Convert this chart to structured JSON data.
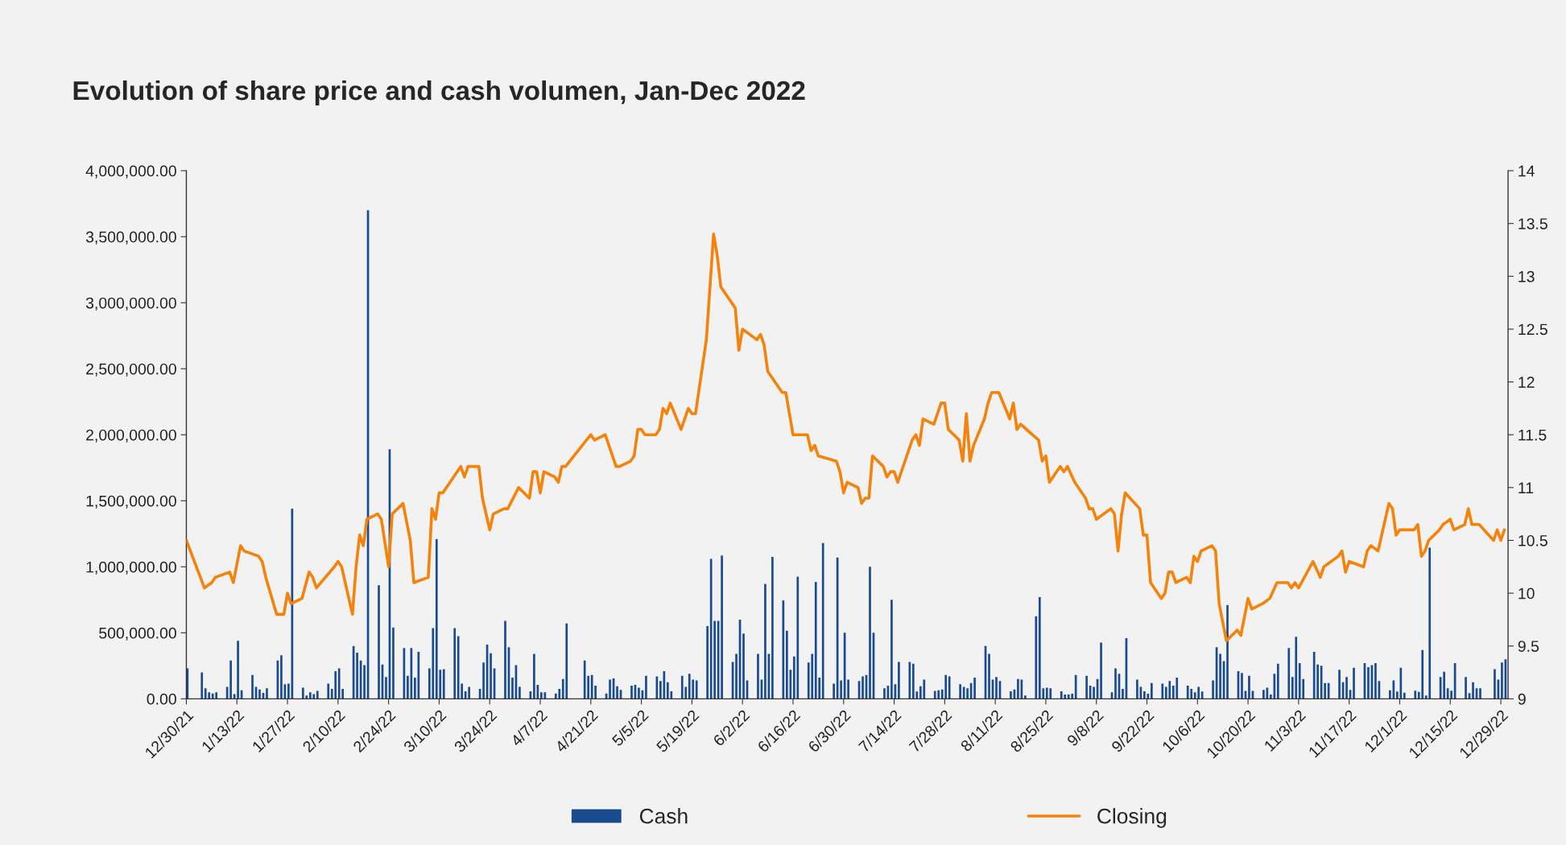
{
  "chart_data": {
    "type": "bar",
    "title": "Evolution of share price and cash volumen, Jan-Dec 2022",
    "legend": "bottom",
    "xlim": [
      "2021-12-30",
      "2022-12-31"
    ],
    "xticks": [
      {
        "value": "2021-12-30",
        "label": "12/30/21"
      },
      {
        "value": "2022-01-13",
        "label": "1/13/22"
      },
      {
        "value": "2022-01-27",
        "label": "1/27/22"
      },
      {
        "value": "2022-02-10",
        "label": "2/10/22"
      },
      {
        "value": "2022-02-24",
        "label": "2/24/22"
      },
      {
        "value": "2022-03-10",
        "label": "3/10/22"
      },
      {
        "value": "2022-03-24",
        "label": "3/24/22"
      },
      {
        "value": "2022-04-07",
        "label": "4/7/22"
      },
      {
        "value": "2022-04-21",
        "label": "4/21/22"
      },
      {
        "value": "2022-05-05",
        "label": "5/5/22"
      },
      {
        "value": "2022-05-19",
        "label": "5/19/22"
      },
      {
        "value": "2022-06-02",
        "label": "6/2/22"
      },
      {
        "value": "2022-06-16",
        "label": "6/16/22"
      },
      {
        "value": "2022-06-30",
        "label": "6/30/22"
      },
      {
        "value": "2022-07-14",
        "label": "7/14/22"
      },
      {
        "value": "2022-07-28",
        "label": "7/28/22"
      },
      {
        "value": "2022-08-11",
        "label": "8/11/22"
      },
      {
        "value": "2022-08-25",
        "label": "8/25/22"
      },
      {
        "value": "2022-09-08",
        "label": "9/8/22"
      },
      {
        "value": "2022-09-22",
        "label": "9/22/22"
      },
      {
        "value": "2022-10-06",
        "label": "10/6/22"
      },
      {
        "value": "2022-10-20",
        "label": "10/20/22"
      },
      {
        "value": "2022-11-03",
        "label": "11/3/22"
      },
      {
        "value": "2022-11-17",
        "label": "11/17/22"
      },
      {
        "value": "2022-12-01",
        "label": "12/1/22"
      },
      {
        "value": "2022-12-15",
        "label": "12/15/22"
      },
      {
        "value": "2022-12-29",
        "label": "12/29/22"
      }
    ],
    "ylim": [
      0,
      4000000
    ],
    "yticks": [
      {
        "value": 0,
        "label": "0.00"
      },
      {
        "value": 500000,
        "label": "500,000.00"
      },
      {
        "value": 1000000,
        "label": "1,000,000.00"
      },
      {
        "value": 1500000,
        "label": "1,500,000.00"
      },
      {
        "value": 2000000,
        "label": "2,000,000.00"
      },
      {
        "value": 2500000,
        "label": "2,500,000.00"
      },
      {
        "value": 3000000,
        "label": "3,000,000.00"
      },
      {
        "value": 3500000,
        "label": "3,500,000.00"
      },
      {
        "value": 4000000,
        "label": "4,000,000.00"
      }
    ],
    "y2lim": [
      9,
      14
    ],
    "y2ticks": [
      9,
      9.5,
      10,
      10.5,
      11,
      11.5,
      12,
      12.5,
      13,
      13.5,
      14
    ],
    "series": [
      {
        "name": "Cash",
        "color": "#1a4a8f",
        "x": [
          "2021-12-30",
          "2022-01-03",
          "2022-01-04",
          "2022-01-05",
          "2022-01-06",
          "2022-01-07",
          "2022-01-10",
          "2022-01-11",
          "2022-01-12",
          "2022-01-13",
          "2022-01-14",
          "2022-01-17",
          "2022-01-18",
          "2022-01-19",
          "2022-01-20",
          "2022-01-21",
          "2022-01-24",
          "2022-01-25",
          "2022-01-26",
          "2022-01-27",
          "2022-01-28",
          "2022-01-31",
          "2022-02-01",
          "2022-02-02",
          "2022-02-03",
          "2022-02-04",
          "2022-02-07",
          "2022-02-08",
          "2022-02-09",
          "2022-02-10",
          "2022-02-11",
          "2022-02-14",
          "2022-02-15",
          "2022-02-16",
          "2022-02-17",
          "2022-02-18",
          "2022-02-21",
          "2022-02-22",
          "2022-02-23",
          "2022-02-24",
          "2022-02-25",
          "2022-02-28",
          "2022-03-01",
          "2022-03-02",
          "2022-03-03",
          "2022-03-04",
          "2022-03-07",
          "2022-03-08",
          "2022-03-09",
          "2022-03-10",
          "2022-03-11",
          "2022-03-14",
          "2022-03-15",
          "2022-03-16",
          "2022-03-17",
          "2022-03-18",
          "2022-03-21",
          "2022-03-22",
          "2022-03-23",
          "2022-03-24",
          "2022-03-25",
          "2022-03-28",
          "2022-03-29",
          "2022-03-30",
          "2022-03-31",
          "2022-04-01",
          "2022-04-04",
          "2022-04-05",
          "2022-04-06",
          "2022-04-07",
          "2022-04-08",
          "2022-04-11",
          "2022-04-12",
          "2022-04-13",
          "2022-04-14",
          "2022-04-19",
          "2022-04-20",
          "2022-04-21",
          "2022-04-22",
          "2022-04-25",
          "2022-04-26",
          "2022-04-27",
          "2022-04-28",
          "2022-04-29",
          "2022-05-02",
          "2022-05-03",
          "2022-05-04",
          "2022-05-05",
          "2022-05-06",
          "2022-05-09",
          "2022-05-10",
          "2022-05-11",
          "2022-05-12",
          "2022-05-13",
          "2022-05-16",
          "2022-05-17",
          "2022-05-18",
          "2022-05-19",
          "2022-05-20",
          "2022-05-23",
          "2022-05-24",
          "2022-05-25",
          "2022-05-26",
          "2022-05-27",
          "2022-05-30",
          "2022-05-31",
          "2022-06-01",
          "2022-06-02",
          "2022-06-03",
          "2022-06-06",
          "2022-06-07",
          "2022-06-08",
          "2022-06-09",
          "2022-06-10",
          "2022-06-13",
          "2022-06-14",
          "2022-06-15",
          "2022-06-16",
          "2022-06-17",
          "2022-06-20",
          "2022-06-21",
          "2022-06-22",
          "2022-06-23",
          "2022-06-24",
          "2022-06-27",
          "2022-06-28",
          "2022-06-29",
          "2022-06-30",
          "2022-07-01",
          "2022-07-04",
          "2022-07-05",
          "2022-07-06",
          "2022-07-07",
          "2022-07-08",
          "2022-07-11",
          "2022-07-12",
          "2022-07-13",
          "2022-07-14",
          "2022-07-15",
          "2022-07-18",
          "2022-07-19",
          "2022-07-20",
          "2022-07-21",
          "2022-07-22",
          "2022-07-25",
          "2022-07-26",
          "2022-07-27",
          "2022-07-28",
          "2022-07-29",
          "2022-08-01",
          "2022-08-02",
          "2022-08-03",
          "2022-08-04",
          "2022-08-05",
          "2022-08-08",
          "2022-08-09",
          "2022-08-10",
          "2022-08-11",
          "2022-08-12",
          "2022-08-15",
          "2022-08-16",
          "2022-08-17",
          "2022-08-18",
          "2022-08-19",
          "2022-08-22",
          "2022-08-23",
          "2022-08-24",
          "2022-08-25",
          "2022-08-26",
          "2022-08-29",
          "2022-08-30",
          "2022-08-31",
          "2022-09-01",
          "2022-09-02",
          "2022-09-05",
          "2022-09-06",
          "2022-09-07",
          "2022-09-08",
          "2022-09-09",
          "2022-09-12",
          "2022-09-13",
          "2022-09-14",
          "2022-09-15",
          "2022-09-16",
          "2022-09-19",
          "2022-09-20",
          "2022-09-21",
          "2022-09-22",
          "2022-09-23",
          "2022-09-26",
          "2022-09-27",
          "2022-09-28",
          "2022-09-29",
          "2022-09-30",
          "2022-10-03",
          "2022-10-04",
          "2022-10-05",
          "2022-10-06",
          "2022-10-07",
          "2022-10-10",
          "2022-10-11",
          "2022-10-12",
          "2022-10-13",
          "2022-10-14",
          "2022-10-17",
          "2022-10-18",
          "2022-10-19",
          "2022-10-20",
          "2022-10-21",
          "2022-10-24",
          "2022-10-25",
          "2022-10-26",
          "2022-10-27",
          "2022-10-28",
          "2022-10-31",
          "2022-11-01",
          "2022-11-02",
          "2022-11-03",
          "2022-11-04",
          "2022-11-07",
          "2022-11-08",
          "2022-11-09",
          "2022-11-10",
          "2022-11-11",
          "2022-11-14",
          "2022-11-15",
          "2022-11-16",
          "2022-11-17",
          "2022-11-18",
          "2022-11-21",
          "2022-11-22",
          "2022-11-23",
          "2022-11-24",
          "2022-11-25",
          "2022-11-28",
          "2022-11-29",
          "2022-11-30",
          "2022-12-01",
          "2022-12-02",
          "2022-12-05",
          "2022-12-06",
          "2022-12-07",
          "2022-12-08",
          "2022-12-09",
          "2022-12-12",
          "2022-12-13",
          "2022-12-14",
          "2022-12-15",
          "2022-12-16",
          "2022-12-19",
          "2022-12-20",
          "2022-12-21",
          "2022-12-22",
          "2022-12-23",
          "2022-12-27",
          "2022-12-28",
          "2022-12-29",
          "2022-12-30"
        ],
        "values": [
          230000,
          200000,
          80000,
          50000,
          40000,
          50000,
          90000,
          290000,
          35000,
          440000,
          65000,
          180000,
          90000,
          70000,
          45000,
          80000,
          290000,
          330000,
          110000,
          115000,
          1440000,
          85000,
          25000,
          50000,
          35000,
          60000,
          115000,
          75000,
          210000,
          230000,
          75000,
          400000,
          350000,
          290000,
          255000,
          3700000,
          860000,
          260000,
          165000,
          1890000,
          540000,
          385000,
          175000,
          385000,
          160000,
          355000,
          230000,
          535000,
          1210000,
          220000,
          225000,
          535000,
          475000,
          115000,
          57000,
          90000,
          75000,
          275000,
          410000,
          345000,
          230000,
          590000,
          390000,
          160000,
          255000,
          90000,
          57000,
          340000,
          105000,
          50000,
          50000,
          40000,
          75000,
          150000,
          570000,
          290000,
          175000,
          180000,
          100000,
          40000,
          145000,
          155000,
          95000,
          68000,
          100000,
          105000,
          85000,
          65000,
          175000,
          170000,
          135000,
          210000,
          125000,
          57000,
          175000,
          90000,
          190000,
          145000,
          140000,
          550000,
          1060000,
          590000,
          590000,
          1085000,
          280000,
          340000,
          600000,
          495000,
          140000,
          340000,
          145000,
          870000,
          340000,
          1075000,
          745000,
          515000,
          220000,
          320000,
          925000,
          275000,
          340000,
          885000,
          160000,
          1180000,
          115000,
          1070000,
          140000,
          500000,
          145000,
          135000,
          170000,
          180000,
          1000000,
          500000,
          80000,
          100000,
          750000,
          110000,
          280000,
          280000,
          265000,
          55000,
          95000,
          145000,
          60000,
          65000,
          70000,
          180000,
          170000,
          110000,
          90000,
          80000,
          120000,
          160000,
          400000,
          340000,
          145000,
          165000,
          135000,
          57000,
          70000,
          150000,
          145000,
          25000,
          625000,
          770000,
          80000,
          85000,
          80000,
          57000,
          33000,
          33000,
          38000,
          180000,
          175000,
          100000,
          90000,
          150000,
          425000,
          50000,
          230000,
          190000,
          75000,
          460000,
          145000,
          90000,
          57000,
          38000,
          120000,
          115000,
          90000,
          135000,
          100000,
          160000,
          100000,
          75000,
          50000,
          90000,
          55000,
          140000,
          390000,
          340000,
          285000,
          710000,
          210000,
          195000,
          60000,
          175000,
          60000,
          68000,
          85000,
          33000,
          190000,
          265000,
          385000,
          165000,
          470000,
          270000,
          150000,
          355000,
          260000,
          250000,
          120000,
          120000,
          220000,
          125000,
          165000,
          68000,
          235000,
          270000,
          240000,
          255000,
          270000,
          135000,
          65000,
          140000,
          55000,
          235000,
          46000,
          62000,
          52000,
          370000,
          25000,
          1145000,
          165000,
          205000,
          80000,
          62000,
          270000,
          165000,
          43000,
          125000,
          80000,
          80000,
          225000,
          145000,
          275000,
          300000
        ]
      },
      {
        "name": "Closing",
        "type": "line",
        "axis": "y2",
        "color": "#f5820a",
        "x": [
          "2021-12-30",
          "2022-01-04",
          "2022-01-06",
          "2022-01-07",
          "2022-01-11",
          "2022-01-12",
          "2022-01-14",
          "2022-01-15",
          "2022-01-19",
          "2022-01-20",
          "2022-01-21",
          "2022-01-24",
          "2022-01-26",
          "2022-01-27",
          "2022-01-28",
          "2022-01-31",
          "2022-02-02",
          "2022-02-03",
          "2022-02-04",
          "2022-02-09",
          "2022-02-10",
          "2022-02-11",
          "2022-02-14",
          "2022-02-15",
          "2022-02-16",
          "2022-02-17",
          "2022-02-18",
          "2022-02-21",
          "2022-02-22",
          "2022-02-24",
          "2022-02-25",
          "2022-02-28",
          "2022-03-02",
          "2022-03-03",
          "2022-03-07",
          "2022-03-08",
          "2022-03-09",
          "2022-03-10",
          "2022-03-11",
          "2022-03-14",
          "2022-03-16",
          "2022-03-17",
          "2022-03-18",
          "2022-03-21",
          "2022-03-22",
          "2022-03-24",
          "2022-03-25",
          "2022-03-28",
          "2022-03-29",
          "2022-04-01",
          "2022-04-04",
          "2022-04-05",
          "2022-04-06",
          "2022-04-07",
          "2022-04-08",
          "2022-04-11",
          "2022-04-12",
          "2022-04-13",
          "2022-04-14",
          "2022-04-21",
          "2022-04-22",
          "2022-04-25",
          "2022-04-26",
          "2022-04-28",
          "2022-04-29",
          "2022-05-02",
          "2022-05-03",
          "2022-05-04",
          "2022-05-05",
          "2022-05-06",
          "2022-05-09",
          "2022-05-10",
          "2022-05-11",
          "2022-05-12",
          "2022-05-13",
          "2022-05-16",
          "2022-05-18",
          "2022-05-19",
          "2022-05-20",
          "2022-05-23",
          "2022-05-25",
          "2022-05-26",
          "2022-05-27",
          "2022-05-31",
          "2022-06-01",
          "2022-06-02",
          "2022-06-06",
          "2022-06-07",
          "2022-06-08",
          "2022-06-09",
          "2022-06-13",
          "2022-06-14",
          "2022-06-16",
          "2022-06-20",
          "2022-06-21",
          "2022-06-22",
          "2022-06-23",
          "2022-06-28",
          "2022-06-29",
          "2022-06-30",
          "2022-07-01",
          "2022-07-04",
          "2022-07-05",
          "2022-07-06",
          "2022-07-07",
          "2022-07-08",
          "2022-07-11",
          "2022-07-12",
          "2022-07-13",
          "2022-07-14",
          "2022-07-15",
          "2022-07-19",
          "2022-07-20",
          "2022-07-21",
          "2022-07-22",
          "2022-07-25",
          "2022-07-27",
          "2022-07-28",
          "2022-07-29",
          "2022-08-01",
          "2022-08-02",
          "2022-08-03",
          "2022-08-04",
          "2022-08-05",
          "2022-08-08",
          "2022-08-09",
          "2022-08-10",
          "2022-08-12",
          "2022-08-15",
          "2022-08-16",
          "2022-08-17",
          "2022-08-18",
          "2022-08-23",
          "2022-08-24",
          "2022-08-25",
          "2022-08-26",
          "2022-08-29",
          "2022-08-30",
          "2022-08-31",
          "2022-09-02",
          "2022-09-05",
          "2022-09-06",
          "2022-09-07",
          "2022-09-08",
          "2022-09-12",
          "2022-09-13",
          "2022-09-14",
          "2022-09-15",
          "2022-09-16",
          "2022-09-20",
          "2022-09-21",
          "2022-09-22",
          "2022-09-23",
          "2022-09-26",
          "2022-09-27",
          "2022-09-28",
          "2022-09-29",
          "2022-09-30",
          "2022-10-03",
          "2022-10-04",
          "2022-10-05",
          "2022-10-06",
          "2022-10-07",
          "2022-10-10",
          "2022-10-11",
          "2022-10-12",
          "2022-10-14",
          "2022-10-17",
          "2022-10-18",
          "2022-10-20",
          "2022-10-21",
          "2022-10-24",
          "2022-10-26",
          "2022-10-28",
          "2022-10-31",
          "2022-11-01",
          "2022-11-02",
          "2022-11-03",
          "2022-11-07",
          "2022-11-09",
          "2022-11-10",
          "2022-11-14",
          "2022-11-15",
          "2022-11-16",
          "2022-11-17",
          "2022-11-21",
          "2022-11-22",
          "2022-11-23",
          "2022-11-25",
          "2022-11-28",
          "2022-11-29",
          "2022-11-30",
          "2022-12-01",
          "2022-12-05",
          "2022-12-06",
          "2022-12-07",
          "2022-12-08",
          "2022-12-09",
          "2022-12-12",
          "2022-12-13",
          "2022-12-15",
          "2022-12-16",
          "2022-12-19",
          "2022-12-20",
          "2022-12-21",
          "2022-12-23",
          "2022-12-27",
          "2022-12-28",
          "2022-12-29",
          "2022-12-30"
        ],
        "values": [
          10.5,
          10.05,
          10.1,
          10.15,
          10.2,
          10.1,
          10.45,
          10.4,
          10.35,
          10.3,
          10.15,
          9.8,
          9.8,
          10.0,
          9.9,
          9.95,
          10.2,
          10.15,
          10.05,
          10.25,
          10.3,
          10.25,
          9.8,
          10.25,
          10.55,
          10.45,
          10.7,
          10.75,
          10.7,
          10.25,
          10.75,
          10.85,
          10.5,
          10.1,
          10.15,
          10.8,
          10.7,
          10.95,
          10.95,
          11.1,
          11.2,
          11.1,
          11.2,
          11.2,
          10.9,
          10.6,
          10.75,
          10.8,
          10.8,
          11.0,
          10.9,
          11.15,
          11.15,
          10.95,
          11.15,
          11.1,
          11.05,
          11.2,
          11.2,
          11.5,
          11.45,
          11.5,
          11.4,
          11.2,
          11.2,
          11.25,
          11.3,
          11.55,
          11.55,
          11.5,
          11.5,
          11.55,
          11.75,
          11.7,
          11.8,
          11.55,
          11.75,
          11.7,
          11.7,
          12.4,
          13.4,
          13.2,
          12.9,
          12.7,
          12.3,
          12.5,
          12.4,
          12.45,
          12.35,
          12.1,
          11.9,
          11.9,
          11.5,
          11.5,
          11.35,
          11.4,
          11.3,
          11.25,
          11.15,
          10.95,
          11.05,
          11.0,
          10.85,
          10.9,
          10.9,
          11.3,
          11.2,
          11.1,
          11.15,
          11.15,
          11.05,
          11.45,
          11.5,
          11.4,
          11.65,
          11.6,
          11.8,
          11.8,
          11.55,
          11.45,
          11.25,
          11.7,
          11.25,
          11.4,
          11.65,
          11.8,
          11.9,
          11.9,
          11.65,
          11.8,
          11.55,
          11.6,
          11.45,
          11.25,
          11.3,
          11.05,
          11.2,
          11.15,
          11.2,
          11.05,
          10.9,
          10.8,
          10.8,
          10.7,
          10.8,
          10.75,
          10.4,
          10.75,
          10.95,
          10.8,
          10.55,
          10.55,
          10.1,
          9.95,
          10.0,
          10.2,
          10.2,
          10.1,
          10.15,
          10.1,
          10.35,
          10.3,
          10.4,
          10.45,
          10.4,
          9.9,
          9.55,
          9.65,
          9.6,
          9.95,
          9.85,
          9.9,
          9.95,
          10.1,
          10.1,
          10.05,
          10.1,
          10.05,
          10.3,
          10.15,
          10.25,
          10.35,
          10.4,
          10.2,
          10.3,
          10.25,
          10.4,
          10.45,
          10.4,
          10.85,
          10.8,
          10.55,
          10.6,
          10.6,
          10.65,
          10.35,
          10.4,
          10.5,
          10.6,
          10.65,
          10.7,
          10.6,
          10.65,
          10.8,
          10.65,
          10.65,
          10.5,
          10.6,
          10.5,
          10.6
        ]
      }
    ]
  }
}
